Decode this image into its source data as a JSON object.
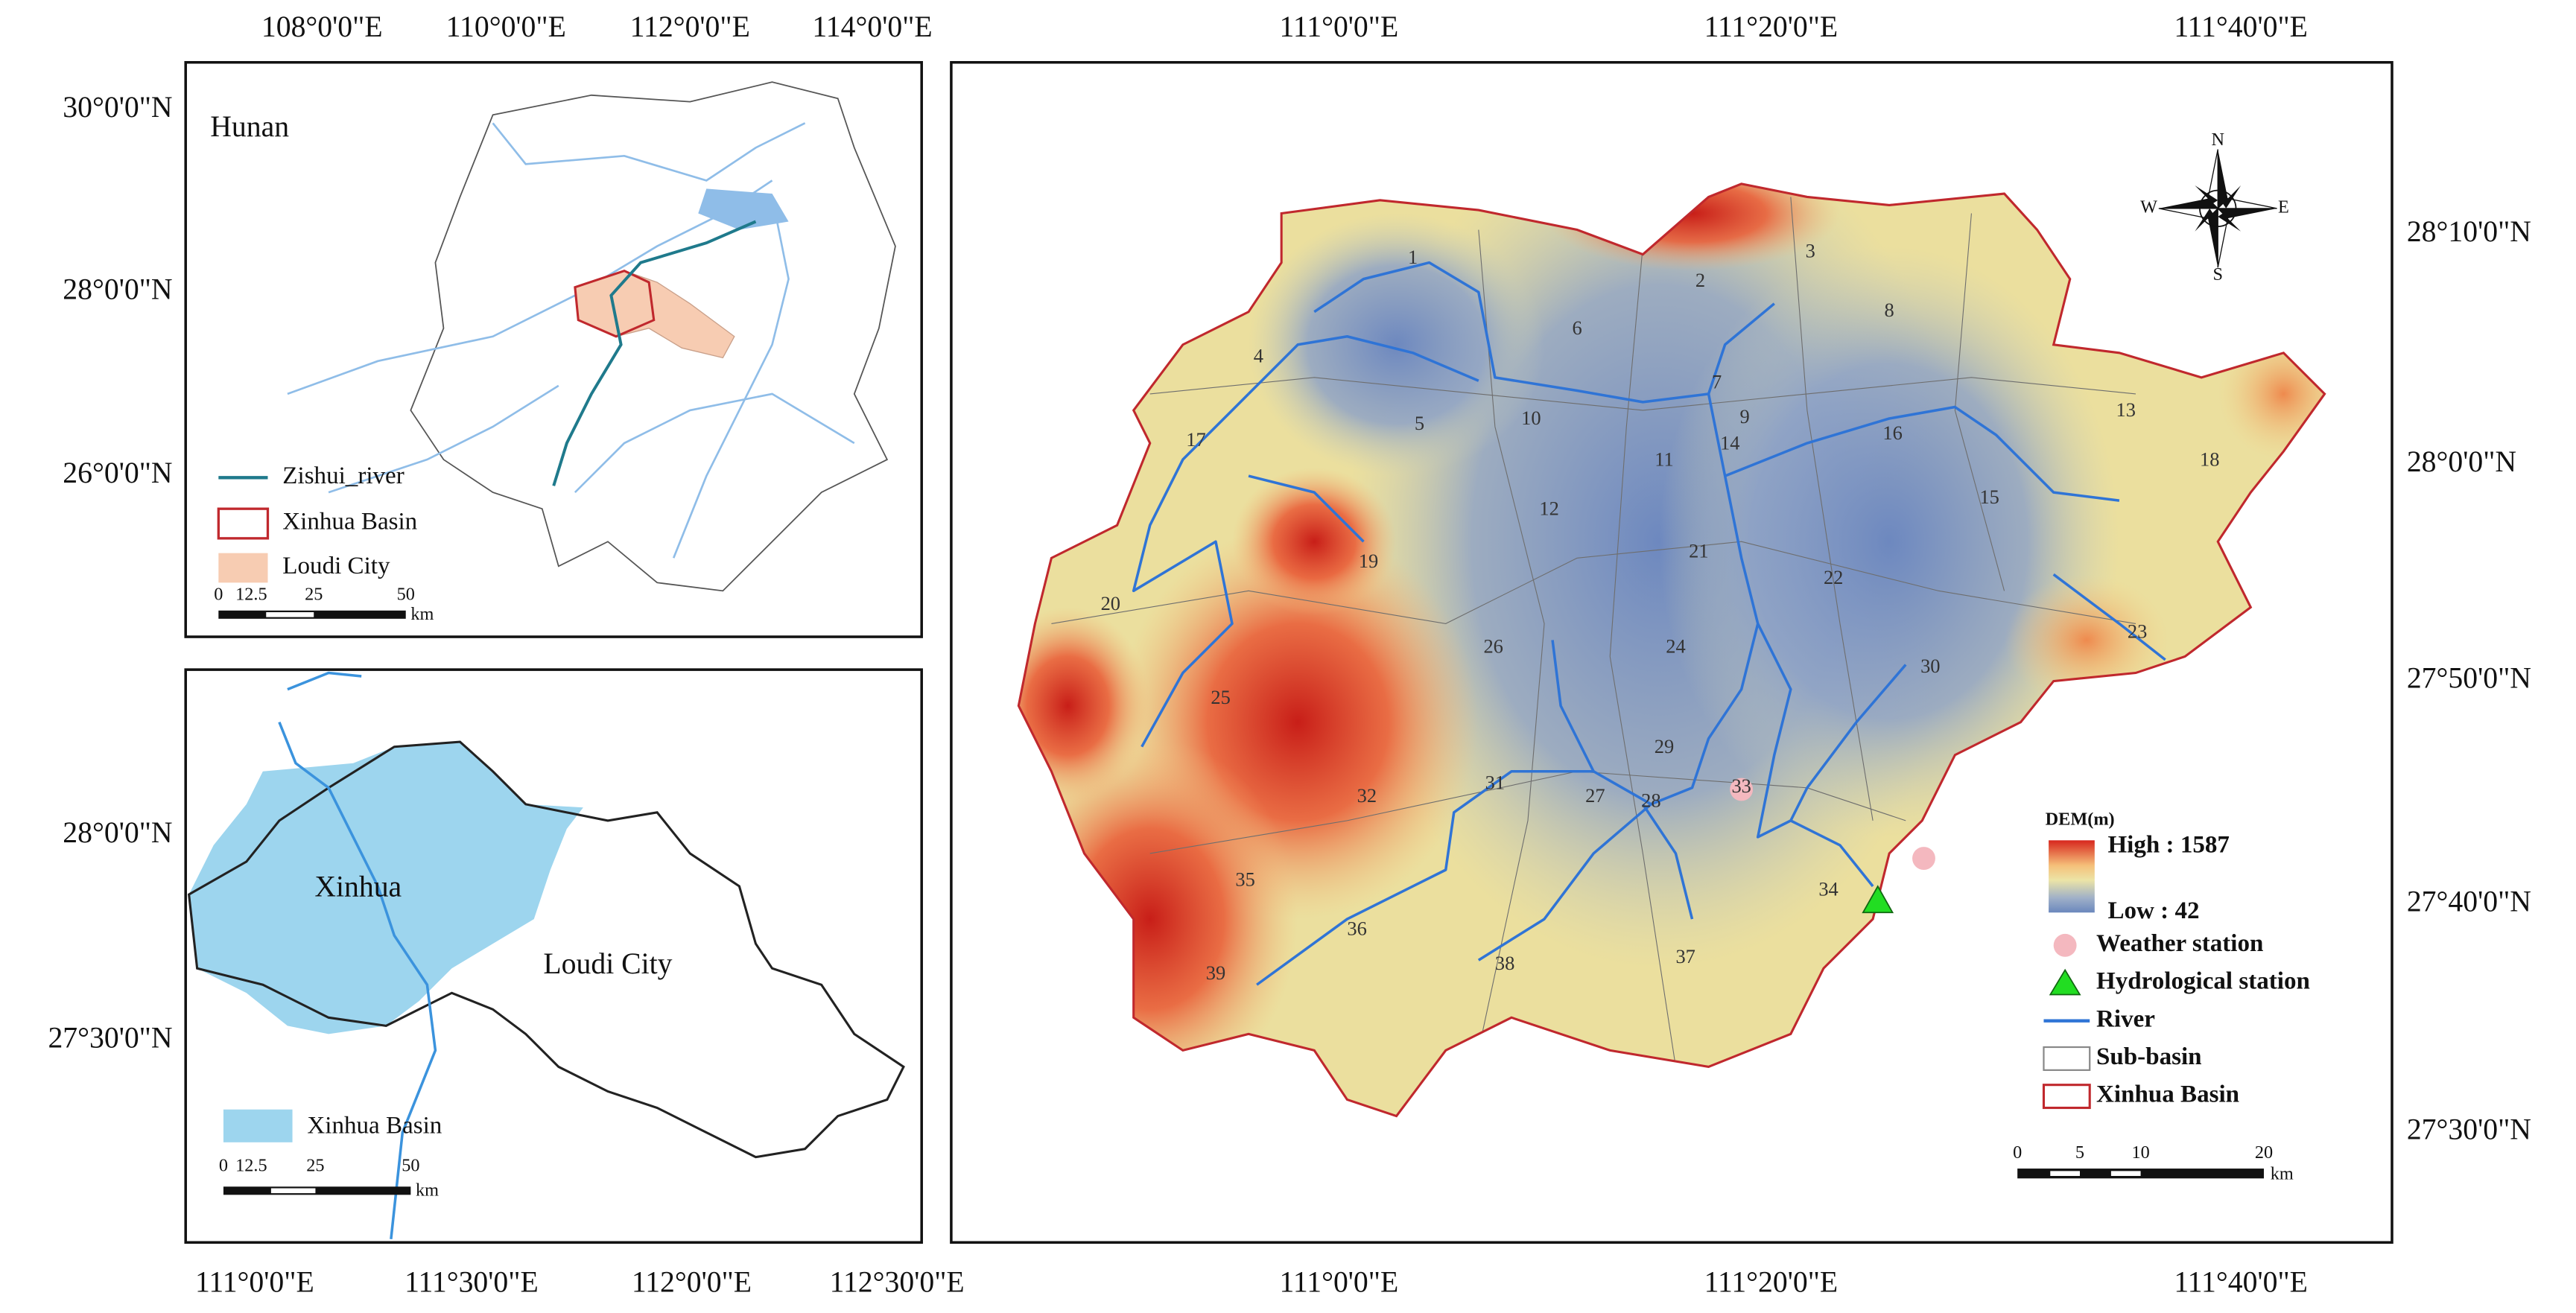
{
  "hunan_map": {
    "title": "Hunan",
    "x_ticks": [
      "108°0'0\"E",
      "110°0'0\"E",
      "112°0'0\"E",
      "114°0'0\"E"
    ],
    "y_ticks": [
      "30°0'0\"N",
      "28°0'0\"N",
      "26°0'0\"N"
    ],
    "legend": {
      "river": "Zishui_river",
      "basin": "Xinhua Basin",
      "city": "Loudi City"
    },
    "scale": {
      "ticks": [
        "0",
        "12.5",
        "25",
        "50"
      ],
      "unit": "km"
    }
  },
  "loudi_map": {
    "labels": {
      "basin": "Xinhua",
      "city": "Loudi City"
    },
    "x_ticks": [
      "111°0'0\"E",
      "111°30'0\"E",
      "112°0'0\"E",
      "112°30'0\"E"
    ],
    "y_ticks": [
      "28°0'0\"N",
      "27°30'0\"N"
    ],
    "legend": {
      "basin": "Xinhua Basin"
    },
    "scale": {
      "ticks": [
        "0",
        "12.5",
        "25",
        "50"
      ],
      "unit": "km"
    }
  },
  "dem_map": {
    "x_ticks": [
      "111°0'0\"E",
      "111°20'0\"E",
      "111°40'0\"E"
    ],
    "y_ticks": [
      "28°10'0\"N",
      "28°0'0\"N",
      "27°50'0\"N",
      "27°40'0\"N",
      "27°30'0\"N"
    ],
    "compass": {
      "n": "N",
      "s": "S",
      "e": "E",
      "w": "W"
    },
    "legend": {
      "title": "DEM(m)",
      "high": "High : 1587",
      "low": "Low : 42",
      "weather": "Weather station",
      "hydro": "Hydrological station",
      "river": "River",
      "subbasin": "Sub-basin",
      "basin": "Xinhua Basin"
    },
    "scale": {
      "ticks": [
        "0",
        "5",
        "10",
        "20"
      ],
      "unit": "km"
    },
    "subbasins": [
      "1",
      "2",
      "3",
      "4",
      "5",
      "6",
      "7",
      "8",
      "9",
      "10",
      "11",
      "12",
      "13",
      "14",
      "15",
      "16",
      "17",
      "18",
      "19",
      "20",
      "21",
      "22",
      "23",
      "24",
      "25",
      "26",
      "27",
      "28",
      "29",
      "30",
      "31",
      "32",
      "33",
      "34",
      "35",
      "36",
      "37",
      "38",
      "39"
    ]
  }
}
